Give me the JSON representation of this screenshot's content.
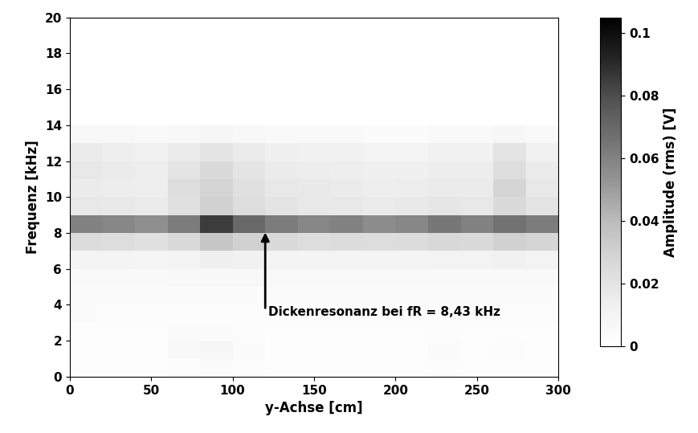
{
  "chart_data": {
    "type": "heatmap",
    "x_label": "y-Achse [cm]",
    "y_label": "Frequenz [kHz]",
    "annotation": "Dickenresonanz bei fR = 8,43 kHz",
    "xlim": [
      0,
      300
    ],
    "xticks": [
      0,
      50,
      100,
      150,
      200,
      250,
      300
    ],
    "ylim": [
      0,
      20
    ],
    "yticks": [
      0,
      2,
      4,
      6,
      8,
      10,
      12,
      14,
      16,
      18,
      20
    ],
    "color": "Greys",
    "x_edges": [
      0,
      20,
      40,
      60,
      80,
      100,
      120,
      140,
      160,
      180,
      200,
      220,
      240,
      260,
      280,
      300
    ],
    "y_edges": [
      0,
      1,
      2,
      3,
      4,
      5,
      6,
      7,
      8,
      9,
      10,
      11,
      12,
      13,
      14,
      15,
      16,
      17,
      18,
      19,
      20
    ],
    "cells": [
      [
        0.002,
        0.002,
        0.002,
        0.003,
        0.004,
        0.003,
        0.002,
        0.002,
        0.002,
        0.002,
        0.002,
        0.003,
        0.002,
        0.002,
        0.002
      ],
      [
        0.002,
        0.002,
        0.002,
        0.006,
        0.007,
        0.004,
        0.002,
        0.002,
        0.002,
        0.002,
        0.002,
        0.004,
        0.002,
        0.003,
        0.002
      ],
      [
        0.002,
        0.002,
        0.002,
        0.004,
        0.004,
        0.003,
        0.002,
        0.002,
        0.002,
        0.002,
        0.002,
        0.003,
        0.002,
        0.002,
        0.002
      ],
      [
        0.004,
        0.003,
        0.003,
        0.003,
        0.003,
        0.003,
        0.003,
        0.003,
        0.003,
        0.003,
        0.003,
        0.003,
        0.003,
        0.003,
        0.003
      ],
      [
        0.004,
        0.004,
        0.004,
        0.004,
        0.004,
        0.004,
        0.004,
        0.004,
        0.004,
        0.004,
        0.004,
        0.004,
        0.004,
        0.004,
        0.004
      ],
      [
        0.005,
        0.005,
        0.005,
        0.006,
        0.006,
        0.006,
        0.005,
        0.005,
        0.005,
        0.005,
        0.005,
        0.005,
        0.005,
        0.005,
        0.005
      ],
      [
        0.01,
        0.01,
        0.009,
        0.011,
        0.013,
        0.012,
        0.01,
        0.01,
        0.01,
        0.01,
        0.01,
        0.011,
        0.011,
        0.012,
        0.011
      ],
      [
        0.025,
        0.024,
        0.022,
        0.026,
        0.035,
        0.03,
        0.026,
        0.024,
        0.025,
        0.024,
        0.025,
        0.027,
        0.026,
        0.03,
        0.028
      ],
      [
        0.06,
        0.058,
        0.055,
        0.062,
        0.085,
        0.07,
        0.062,
        0.058,
        0.06,
        0.056,
        0.058,
        0.064,
        0.06,
        0.066,
        0.062
      ],
      [
        0.018,
        0.017,
        0.016,
        0.022,
        0.03,
        0.024,
        0.02,
        0.018,
        0.018,
        0.016,
        0.017,
        0.019,
        0.018,
        0.026,
        0.02
      ],
      [
        0.016,
        0.015,
        0.014,
        0.024,
        0.028,
        0.022,
        0.018,
        0.017,
        0.016,
        0.014,
        0.015,
        0.016,
        0.016,
        0.028,
        0.018
      ],
      [
        0.018,
        0.016,
        0.014,
        0.02,
        0.026,
        0.02,
        0.016,
        0.015,
        0.014,
        0.013,
        0.013,
        0.015,
        0.015,
        0.024,
        0.016
      ],
      [
        0.016,
        0.014,
        0.012,
        0.016,
        0.02,
        0.016,
        0.013,
        0.012,
        0.012,
        0.011,
        0.011,
        0.012,
        0.012,
        0.02,
        0.012
      ],
      [
        0.006,
        0.006,
        0.005,
        0.006,
        0.008,
        0.006,
        0.005,
        0.005,
        0.005,
        0.004,
        0.004,
        0.005,
        0.005,
        0.007,
        0.005
      ],
      [
        0,
        0,
        0,
        0,
        0,
        0,
        0,
        0,
        0,
        0,
        0,
        0,
        0,
        0,
        0
      ],
      [
        0,
        0,
        0,
        0,
        0,
        0,
        0,
        0,
        0,
        0,
        0,
        0,
        0,
        0,
        0
      ],
      [
        0,
        0,
        0,
        0,
        0,
        0,
        0,
        0,
        0,
        0,
        0,
        0,
        0,
        0,
        0
      ],
      [
        0,
        0,
        0,
        0,
        0,
        0,
        0,
        0,
        0,
        0,
        0,
        0,
        0,
        0,
        0
      ],
      [
        0,
        0,
        0,
        0,
        0,
        0,
        0,
        0,
        0,
        0,
        0,
        0,
        0,
        0,
        0
      ],
      [
        0,
        0,
        0,
        0,
        0,
        0,
        0,
        0,
        0,
        0,
        0,
        0,
        0,
        0,
        0
      ]
    ],
    "colorbar": {
      "range": [
        0,
        0.105
      ],
      "ticks": [
        0,
        0.02,
        0.04,
        0.06,
        0.08,
        0.1
      ],
      "label": "Amplitude (rms) [V]"
    }
  }
}
